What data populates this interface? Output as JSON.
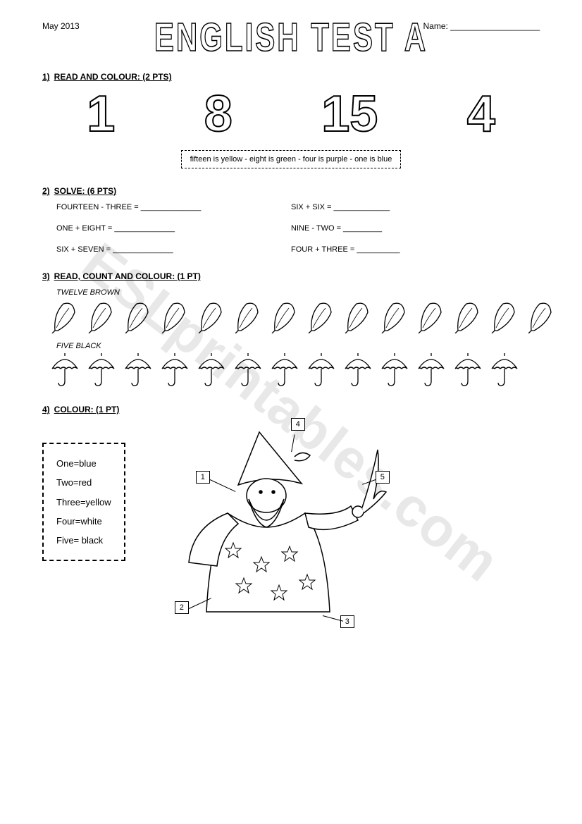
{
  "meta": {
    "date": "May 2013",
    "name_label": "Name: ___________________"
  },
  "title": "ENGLISH TEST A",
  "watermark": "ESLprintables.com",
  "s1": {
    "heading_num": "1)",
    "heading": "READ AND COLOUR: (2 PTS)",
    "numbers": [
      "1",
      "8",
      "15",
      "4"
    ],
    "key": "fifteen is yellow  -  eight is green  -  four is purple  -  one is blue"
  },
  "s2": {
    "heading_num": "2)",
    "heading": "SOLVE:  (6 PTS)",
    "items": [
      "FOURTEEN  -  THREE = ______________",
      "SIX  + SIX = _____________",
      "ONE  +  EIGHT =    ______________",
      "NINE  -   TWO = _________",
      "SIX + SEVEN =    ______________",
      "FOUR  +  THREE = __________"
    ]
  },
  "s3": {
    "heading_num": "3)",
    "heading": "READ, COUNT  AND COLOUR: (1 PT)",
    "row1_label": "TWELVE BROWN",
    "row1_count": 14,
    "row2_label": "FIVE BLACK",
    "row2_count": 13
  },
  "s4": {
    "heading_num": "4)",
    "heading": "COLOUR:  (1 PT)",
    "legend": [
      "One=blue",
      "Two=red",
      "Three=yellow",
      "Four=white",
      "Five= black"
    ],
    "callouts": [
      "1",
      "2",
      "3",
      "4",
      "5"
    ]
  },
  "style": {
    "page_bg": "#ffffff",
    "text_color": "#000000",
    "stroke": "#000000",
    "title_fontsize": 42,
    "body_fontsize": 12,
    "big_number_fontsize": 72
  }
}
